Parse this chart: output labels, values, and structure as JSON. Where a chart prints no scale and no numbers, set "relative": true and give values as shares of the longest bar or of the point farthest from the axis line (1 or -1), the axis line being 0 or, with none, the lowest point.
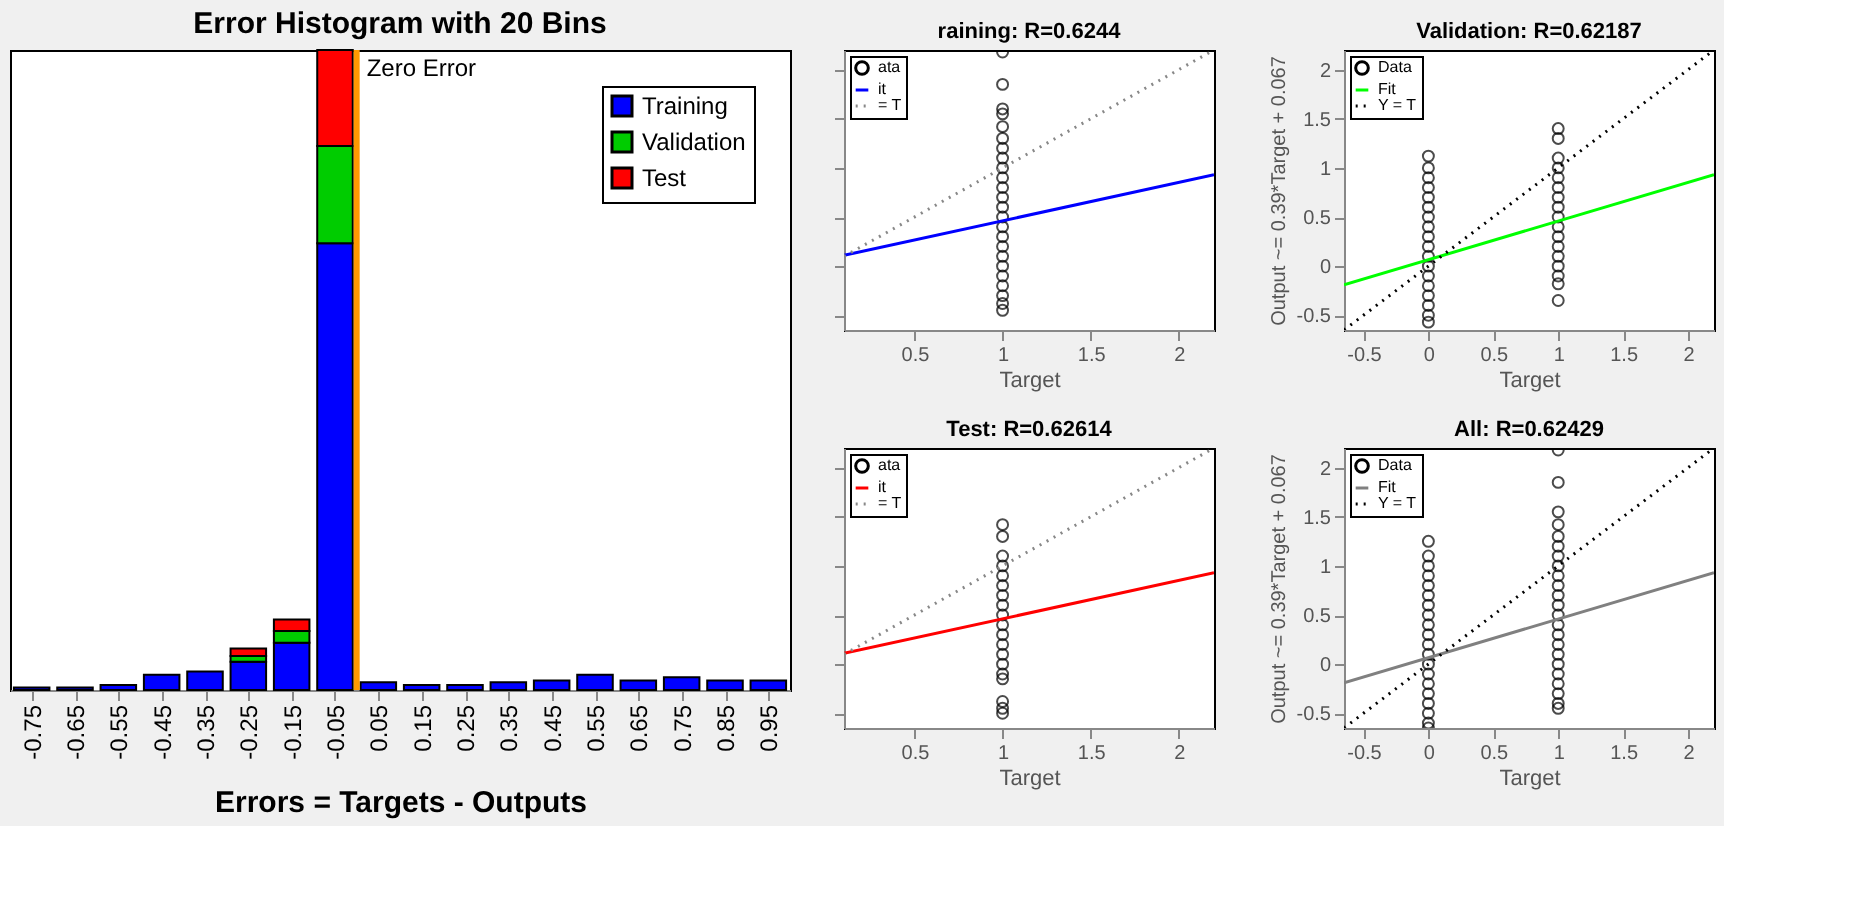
{
  "chart_data": [
    {
      "type": "bar",
      "title": "Error Histogram with 20 Bins",
      "xlabel": "Errors = Targets - Outputs",
      "relative": true,
      "stacked": true,
      "legend": "top right",
      "grid": false,
      "x": [
        -0.75,
        -0.65,
        -0.55,
        -0.45,
        -0.35,
        -0.25,
        -0.15,
        -0.05,
        0.05,
        0.15,
        0.25,
        0.35,
        0.45,
        0.55,
        0.65,
        0.75,
        0.85,
        0.95
      ],
      "xlim": [
        -0.8,
        1.0
      ],
      "xticks": [
        -0.75,
        -0.65,
        -0.55,
        -0.45,
        -0.35,
        -0.25,
        -0.15,
        -0.05,
        0.05,
        0.15,
        0.25,
        0.35,
        0.45,
        0.55,
        0.65,
        0.75,
        0.85,
        0.95
      ],
      "series": [
        {
          "name": "Training",
          "color": "#0000ff",
          "values": [
            0.004,
            0.004,
            0.008,
            0.024,
            0.029,
            0.044,
            0.074,
            0.698,
            0.012,
            0.008,
            0.008,
            0.012,
            0.015,
            0.024,
            0.015,
            0.02,
            0.015,
            0.015
          ]
        },
        {
          "name": "Validation",
          "color": "#00cc00",
          "values": [
            null,
            null,
            null,
            null,
            null,
            0.009,
            0.018,
            0.152,
            null,
            null,
            null,
            null,
            null,
            null,
            null,
            null,
            null,
            null
          ]
        },
        {
          "name": "Test",
          "color": "#ff0000",
          "values": [
            null,
            null,
            null,
            null,
            null,
            0.012,
            0.018,
            0.15,
            null,
            null,
            null,
            null,
            null,
            null,
            null,
            null,
            null,
            null
          ]
        }
      ],
      "ref_lines": [
        {
          "axis": "x",
          "value": 0,
          "label": "Zero Error",
          "color": "#ff9900"
        }
      ]
    },
    {
      "type": "scatter",
      "title": "raining: R=0.6244",
      "xlabel": "Target",
      "legend": "top left",
      "grid": false,
      "tick_labels": "x",
      "xlim": [
        0.1,
        2.2
      ],
      "xticks": [
        0.5,
        1,
        1.5,
        2
      ],
      "ylim": [
        -0.65,
        2.2
      ],
      "yticks": [
        -0.5,
        0,
        0.5,
        1,
        1.5,
        2
      ],
      "series": [
        {
          "name": "ata",
          "type": "scatter",
          "marker": "circle",
          "color": "#000000",
          "x": [
            1,
            1,
            1,
            1,
            1,
            1,
            1,
            1,
            1,
            1,
            1,
            1,
            1,
            1,
            1,
            1,
            1,
            1,
            1,
            1,
            1,
            1,
            1,
            1
          ],
          "values": [
            -0.45,
            -0.38,
            -0.3,
            -0.2,
            -0.1,
            0,
            0.1,
            0.2,
            0.3,
            0.4,
            0.5,
            0.6,
            0.7,
            0.8,
            0.9,
            1.0,
            1.1,
            1.2,
            1.3,
            1.42,
            1.55,
            1.6,
            1.85,
            2.18
          ]
        },
        {
          "name": "it",
          "type": "line",
          "color": "#0000ff",
          "x": [
            0.1,
            2.2
          ],
          "values": [
            0.11,
            0.93
          ]
        },
        {
          "name": "= T",
          "type": "line",
          "line_style": "dotted",
          "color": "#888888",
          "x": [
            0.1,
            2.2
          ],
          "values": [
            0.1,
            2.2
          ]
        }
      ]
    },
    {
      "type": "scatter",
      "title": "Validation: R=0.62187",
      "xlabel": "Target",
      "ylabel": "Output ~= 0.39*Target + 0.067",
      "legend": "top left",
      "grid": false,
      "xlim": [
        -0.65,
        2.2
      ],
      "xticks": [
        -0.5,
        0,
        0.5,
        1,
        1.5,
        2
      ],
      "ylim": [
        -0.65,
        2.2
      ],
      "yticks": [
        -0.5,
        0,
        0.5,
        1,
        1.5,
        2
      ],
      "series": [
        {
          "name": "Data",
          "type": "scatter",
          "marker": "circle",
          "color": "#000000",
          "x": [
            0,
            0,
            0,
            0,
            0,
            0,
            0,
            0,
            0,
            0,
            0,
            0,
            0,
            0,
            0,
            0,
            0,
            0,
            1,
            1,
            1,
            1,
            1,
            1,
            1,
            1,
            1,
            1,
            1,
            1,
            1,
            1,
            1,
            1,
            1
          ],
          "values": [
            -0.57,
            -0.5,
            -0.4,
            -0.3,
            -0.2,
            -0.1,
            0,
            0.1,
            0.2,
            0.3,
            0.4,
            0.5,
            0.6,
            0.7,
            0.8,
            0.9,
            1.0,
            1.12,
            -0.35,
            -0.18,
            -0.1,
            0,
            0.1,
            0.2,
            0.3,
            0.4,
            0.5,
            0.6,
            0.7,
            0.8,
            0.9,
            1.0,
            1.1,
            1.3,
            1.4
          ]
        },
        {
          "name": "Fit",
          "type": "line",
          "color": "#00ff00",
          "x": [
            -0.65,
            2.2
          ],
          "values": [
            -0.19,
            0.93
          ]
        },
        {
          "name": "Y = T",
          "type": "line",
          "line_style": "dotted",
          "color": "#000000",
          "x": [
            -0.65,
            2.2
          ],
          "values": [
            -0.65,
            2.2
          ]
        }
      ]
    },
    {
      "type": "scatter",
      "title": "Test: R=0.62614",
      "xlabel": "Target",
      "legend": "top left",
      "grid": false,
      "tick_labels": "x",
      "xlim": [
        0.1,
        2.2
      ],
      "xticks": [
        0.5,
        1,
        1.5,
        2
      ],
      "ylim": [
        -0.65,
        2.2
      ],
      "yticks": [
        -0.5,
        0,
        0.5,
        1,
        1.5,
        2
      ],
      "series": [
        {
          "name": "ata",
          "type": "scatter",
          "marker": "circle",
          "color": "#000000",
          "x": [
            1,
            1,
            1,
            1,
            1,
            1,
            1,
            1,
            1,
            1,
            1,
            1,
            1,
            1,
            1,
            1,
            1,
            1,
            1
          ],
          "values": [
            -0.5,
            -0.45,
            -0.38,
            -0.15,
            -0.1,
            0,
            0.1,
            0.2,
            0.3,
            0.4,
            0.5,
            0.6,
            0.7,
            0.8,
            0.9,
            1.0,
            1.1,
            1.3,
            1.42
          ]
        },
        {
          "name": "it",
          "type": "line",
          "color": "#ff0000",
          "x": [
            0.1,
            2.2
          ],
          "values": [
            0.11,
            0.93
          ]
        },
        {
          "name": "= T",
          "type": "line",
          "line_style": "dotted",
          "color": "#888888",
          "x": [
            0.1,
            2.2
          ],
          "values": [
            0.1,
            2.2
          ]
        }
      ]
    },
    {
      "type": "scatter",
      "title": "All: R=0.62429",
      "xlabel": "Target",
      "ylabel": "Output ~= 0.39*Target + 0.067",
      "legend": "top left",
      "grid": false,
      "xlim": [
        -0.65,
        2.2
      ],
      "xticks": [
        -0.5,
        0,
        0.5,
        1,
        1.5,
        2
      ],
      "ylim": [
        -0.65,
        2.2
      ],
      "yticks": [
        -0.5,
        0,
        0.5,
        1,
        1.5,
        2
      ],
      "series": [
        {
          "name": "Data",
          "type": "scatter",
          "marker": "circle",
          "color": "#000000",
          "x": [
            0,
            0,
            0,
            0,
            0,
            0,
            0,
            0,
            0,
            0,
            0,
            0,
            0,
            0,
            0,
            0,
            0,
            0,
            0,
            0,
            1,
            1,
            1,
            1,
            1,
            1,
            1,
            1,
            1,
            1,
            1,
            1,
            1,
            1,
            1,
            1,
            1,
            1,
            1,
            1,
            1,
            1,
            1
          ],
          "values": [
            -0.65,
            -0.6,
            -0.5,
            -0.4,
            -0.3,
            -0.2,
            -0.1,
            0,
            0.1,
            0.2,
            0.3,
            0.4,
            0.5,
            0.6,
            0.7,
            0.8,
            0.9,
            1.0,
            1.1,
            1.25,
            -0.45,
            -0.4,
            -0.3,
            -0.2,
            -0.1,
            0,
            0.1,
            0.2,
            0.3,
            0.4,
            0.5,
            0.6,
            0.7,
            0.8,
            0.9,
            1.0,
            1.1,
            1.2,
            1.3,
            1.42,
            1.55,
            1.85,
            2.18
          ]
        },
        {
          "name": "Fit",
          "type": "line",
          "color": "#808080",
          "x": [
            -0.65,
            2.2
          ],
          "values": [
            -0.19,
            0.93
          ]
        },
        {
          "name": "Y = T",
          "type": "line",
          "line_style": "dotted",
          "color": "#000000",
          "x": [
            -0.65,
            2.2
          ],
          "values": [
            -0.65,
            2.2
          ]
        }
      ]
    }
  ]
}
